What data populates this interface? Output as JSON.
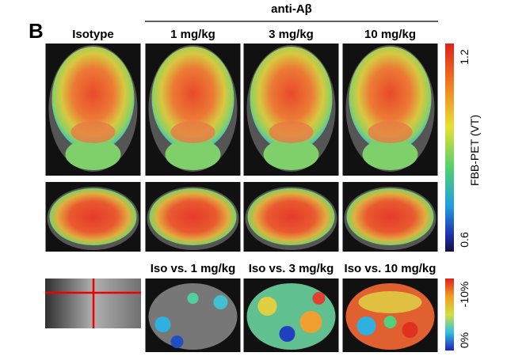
{
  "panel_label": "B",
  "group_header": "anti-Aβ",
  "columns": [
    "Isotype",
    "1 mg/kg",
    "3 mg/kg",
    "10 mg/kg"
  ],
  "comparisons": [
    "Iso vs. 1 mg/kg",
    "Iso vs. 3 mg/kg",
    "Iso vs. 10 mg/kg"
  ],
  "colorbar_pet": {
    "label": "FBB-PET (VT)",
    "top": "1.2",
    "bottom": "0.6"
  },
  "colorbar_diff": {
    "top": "-10%",
    "bottom": "0%"
  }
}
